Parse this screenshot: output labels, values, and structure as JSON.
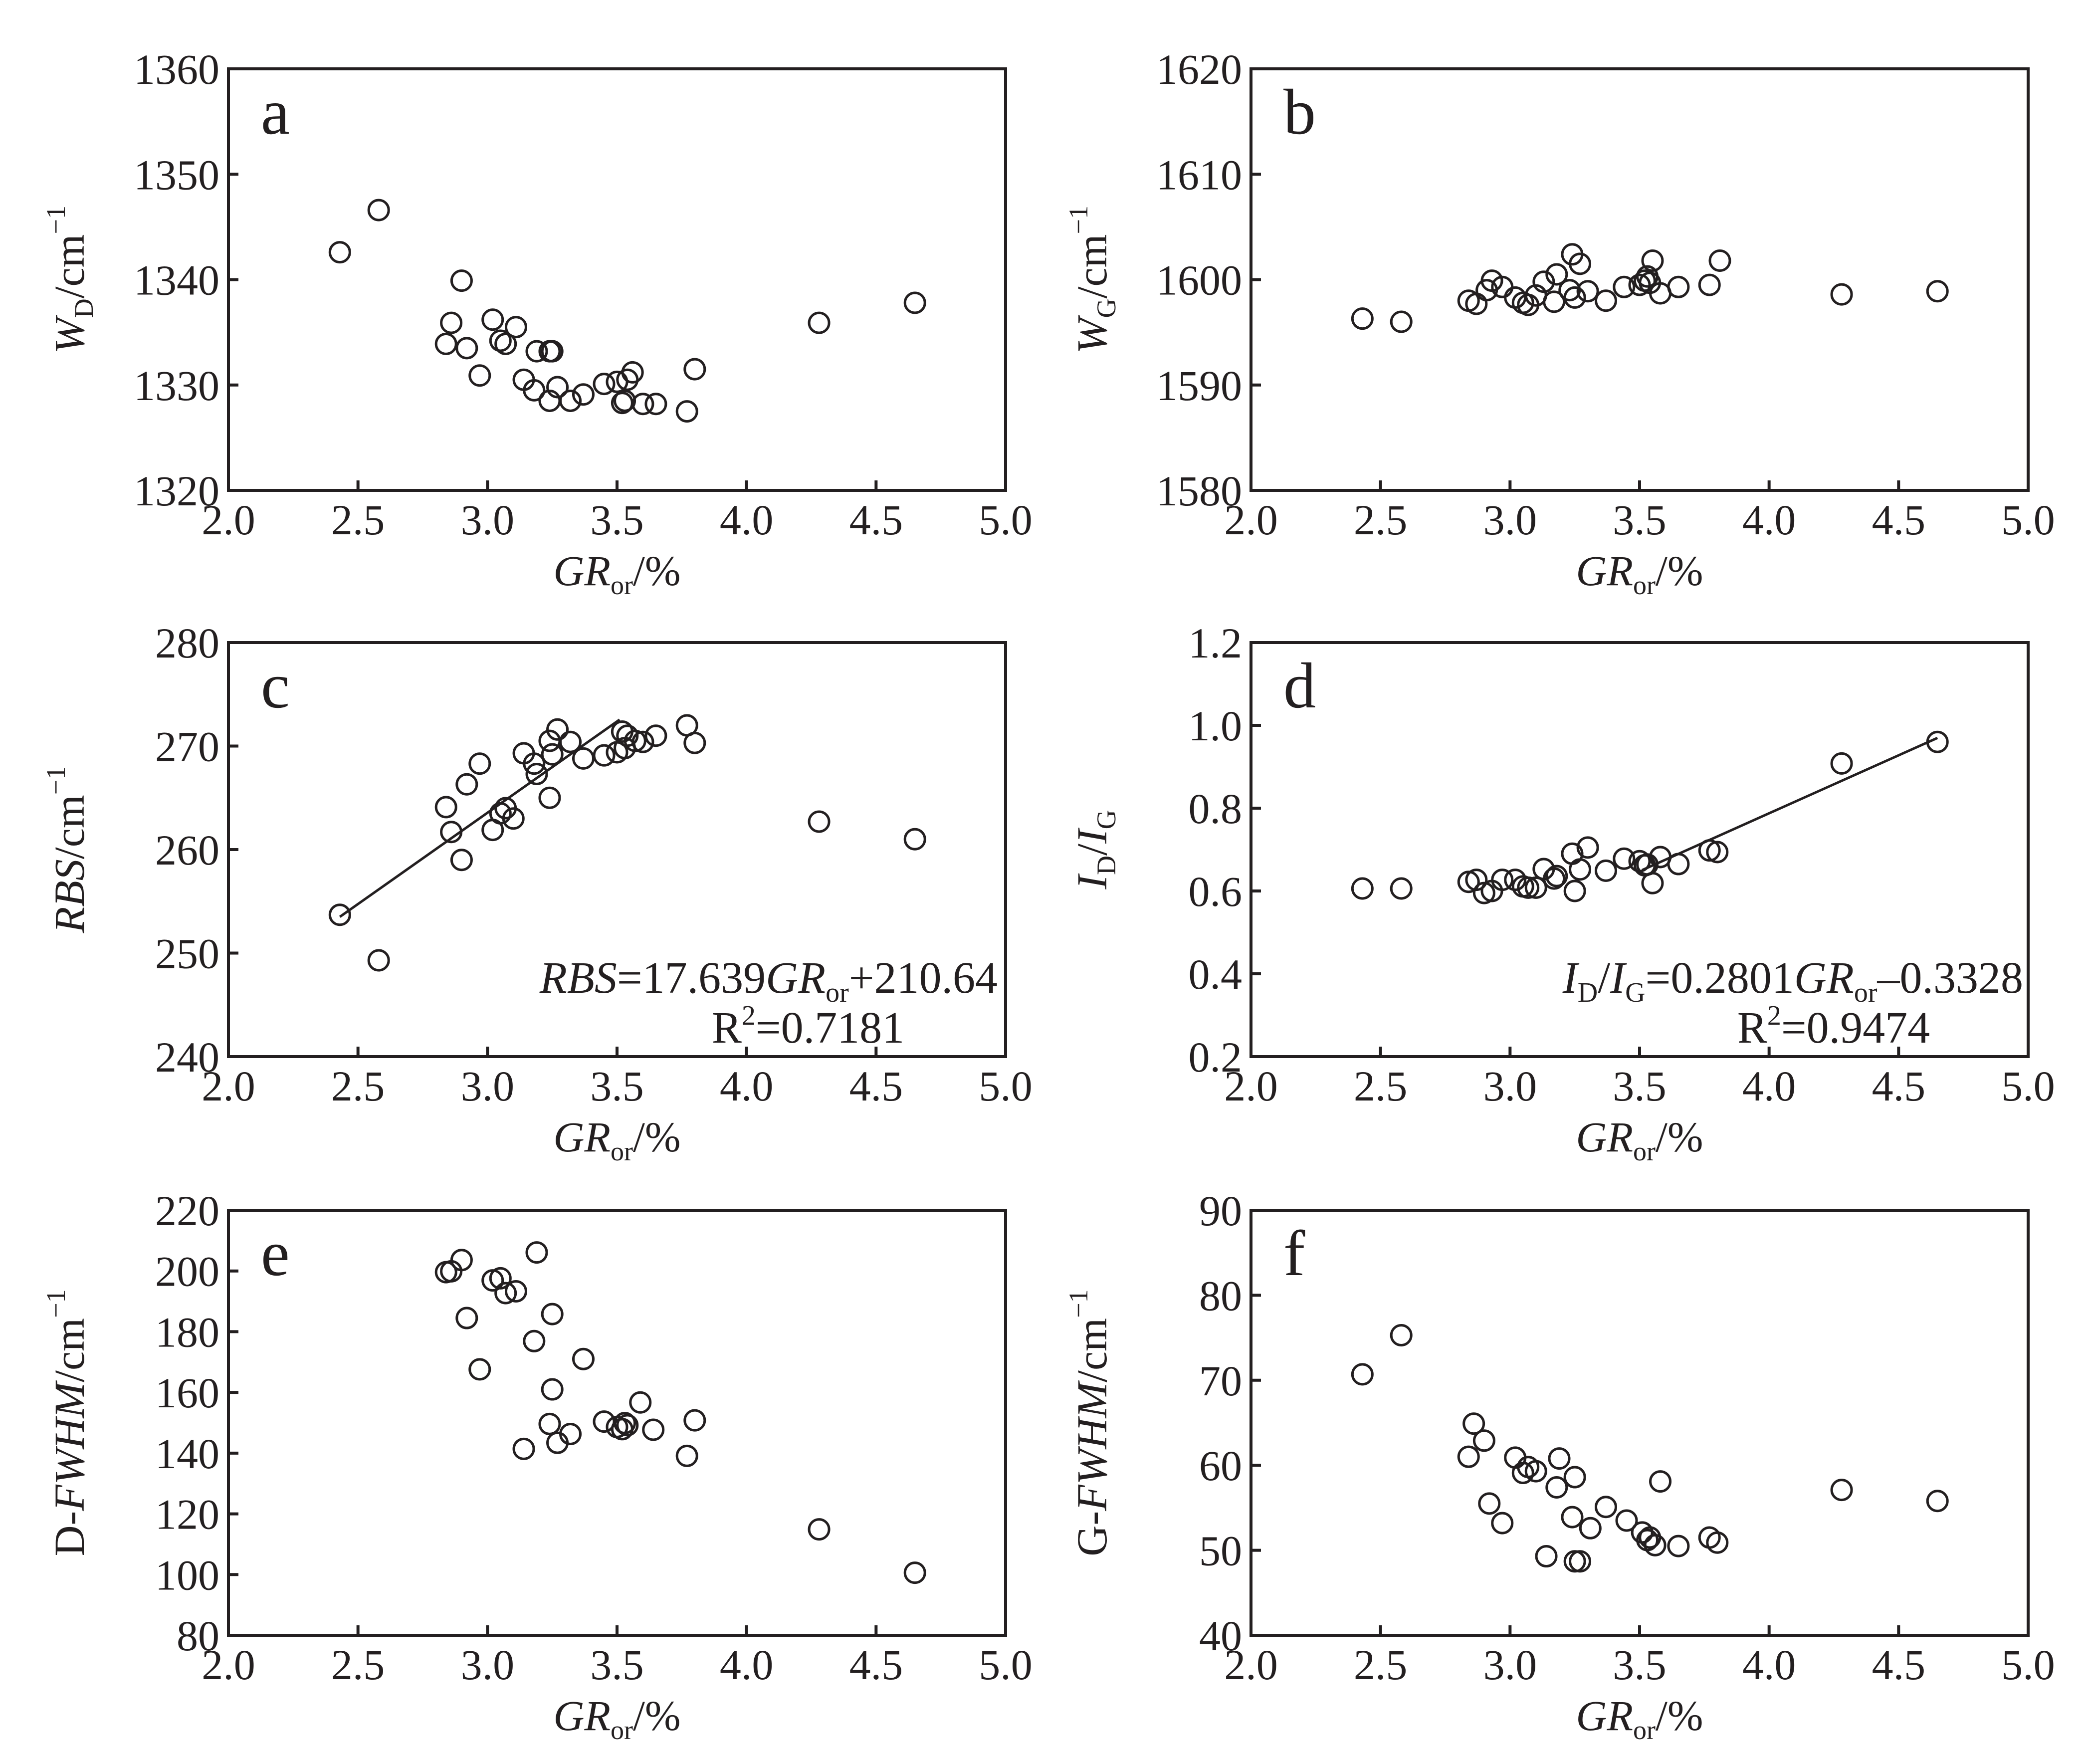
{
  "colors": {
    "ink": "#231f20",
    "background": "#ffffff"
  },
  "chart_data": [
    {
      "id": "a",
      "type": "scatter",
      "label": "a",
      "xlabel": {
        "base": "GR",
        "sub": "or",
        "suffix": "/%"
      },
      "ylabel": {
        "base": "W",
        "sub": "D",
        "suffix": "/cm",
        "sup": "−1"
      },
      "xlim": [
        2.0,
        5.0
      ],
      "ylim": [
        1320,
        1360
      ],
      "xticks": [
        "2.0",
        "2.5",
        "3.0",
        "3.5",
        "4.0",
        "4.5",
        "5.0"
      ],
      "yticks": [
        "1320",
        "1330",
        "1340",
        "1350",
        "1360"
      ],
      "points": [
        [
          2.43,
          1342.6
        ],
        [
          2.58,
          1346.6
        ],
        [
          2.84,
          1333.9
        ],
        [
          2.86,
          1335.9
        ],
        [
          2.9,
          1339.9
        ],
        [
          2.92,
          1333.5
        ],
        [
          2.97,
          1330.9
        ],
        [
          3.02,
          1336.2
        ],
        [
          3.05,
          1334.2
        ],
        [
          3.07,
          1333.9
        ],
        [
          3.11,
          1335.5
        ],
        [
          3.14,
          1330.5
        ],
        [
          3.18,
          1329.5
        ],
        [
          3.19,
          1333.2
        ],
        [
          3.24,
          1328.5
        ],
        [
          3.24,
          1333.2
        ],
        [
          3.25,
          1333.2
        ],
        [
          3.27,
          1329.8
        ],
        [
          3.32,
          1328.5
        ],
        [
          3.37,
          1329.1
        ],
        [
          3.45,
          1330.1
        ],
        [
          3.5,
          1330.3
        ],
        [
          3.52,
          1328.3
        ],
        [
          3.53,
          1328.5
        ],
        [
          3.54,
          1330.5
        ],
        [
          3.56,
          1331.2
        ],
        [
          3.6,
          1328.2
        ],
        [
          3.65,
          1328.2
        ],
        [
          3.77,
          1327.5
        ],
        [
          3.8,
          1331.5
        ],
        [
          4.28,
          1335.9
        ],
        [
          4.65,
          1337.8
        ]
      ]
    },
    {
      "id": "b",
      "type": "scatter",
      "label": "b",
      "xlabel": {
        "base": "GR",
        "sub": "or",
        "suffix": "/%"
      },
      "ylabel": {
        "base": "W",
        "sub": "G",
        "suffix": "/cm",
        "sup": "−1"
      },
      "xlim": [
        2.0,
        5.0
      ],
      "ylim": [
        1580,
        1620
      ],
      "xticks": [
        "2.0",
        "2.5",
        "3.0",
        "3.5",
        "4.0",
        "4.5",
        "5.0"
      ],
      "yticks": [
        "1580",
        "1590",
        "1600",
        "1610",
        "1620"
      ],
      "points": [
        [
          2.43,
          1596.3
        ],
        [
          2.58,
          1596.0
        ],
        [
          2.84,
          1598.0
        ],
        [
          2.87,
          1597.7
        ],
        [
          2.91,
          1599.0
        ],
        [
          2.93,
          1599.9
        ],
        [
          2.97,
          1599.3
        ],
        [
          3.02,
          1598.3
        ],
        [
          3.05,
          1597.8
        ],
        [
          3.07,
          1597.6
        ],
        [
          3.1,
          1598.5
        ],
        [
          3.13,
          1599.8
        ],
        [
          3.17,
          1597.9
        ],
        [
          3.18,
          1600.5
        ],
        [
          3.23,
          1599.0
        ],
        [
          3.24,
          1602.4
        ],
        [
          3.25,
          1598.3
        ],
        [
          3.27,
          1601.5
        ],
        [
          3.3,
          1598.9
        ],
        [
          3.37,
          1598.0
        ],
        [
          3.44,
          1599.3
        ],
        [
          3.5,
          1599.5
        ],
        [
          3.52,
          1599.9
        ],
        [
          3.53,
          1600.3
        ],
        [
          3.54,
          1599.7
        ],
        [
          3.55,
          1601.8
        ],
        [
          3.58,
          1598.7
        ],
        [
          3.65,
          1599.3
        ],
        [
          3.77,
          1599.5
        ],
        [
          3.81,
          1601.8
        ],
        [
          4.28,
          1598.6
        ],
        [
          4.65,
          1598.9
        ]
      ]
    },
    {
      "id": "c",
      "type": "scatter",
      "label": "c",
      "xlabel": {
        "base": "GR",
        "sub": "or",
        "suffix": "/%"
      },
      "ylabel": {
        "base": "RBS",
        "sub": "",
        "suffix": "/cm",
        "sup": "−1"
      },
      "xlim": [
        2.0,
        5.0
      ],
      "ylim": [
        240,
        280
      ],
      "xticks": [
        "2.0",
        "2.5",
        "3.0",
        "3.5",
        "4.0",
        "4.5",
        "5.0"
      ],
      "yticks": [
        "240",
        "250",
        "260",
        "270",
        "280"
      ],
      "points": [
        [
          2.43,
          253.7
        ],
        [
          2.58,
          249.3
        ],
        [
          2.84,
          264.1
        ],
        [
          2.86,
          261.7
        ],
        [
          2.9,
          259.0
        ],
        [
          2.92,
          266.3
        ],
        [
          2.97,
          268.3
        ],
        [
          3.02,
          261.9
        ],
        [
          3.05,
          263.5
        ],
        [
          3.07,
          264.0
        ],
        [
          3.1,
          263.0
        ],
        [
          3.14,
          269.3
        ],
        [
          3.18,
          268.3
        ],
        [
          3.19,
          267.3
        ],
        [
          3.24,
          270.5
        ],
        [
          3.24,
          265.0
        ],
        [
          3.25,
          269.2
        ],
        [
          3.27,
          271.6
        ],
        [
          3.32,
          270.4
        ],
        [
          3.37,
          268.8
        ],
        [
          3.45,
          269.1
        ],
        [
          3.5,
          269.4
        ],
        [
          3.52,
          271.4
        ],
        [
          3.53,
          269.8
        ],
        [
          3.54,
          271.0
        ],
        [
          3.57,
          270.5
        ],
        [
          3.6,
          270.4
        ],
        [
          3.65,
          271.0
        ],
        [
          3.77,
          272.0
        ],
        [
          3.8,
          270.3
        ],
        [
          4.28,
          262.7
        ],
        [
          4.65,
          261.0
        ]
      ],
      "fit": {
        "slope": 17.639,
        "intercept": 210.64,
        "x_range": [
          2.43,
          3.51
        ]
      },
      "equation": {
        "lhs": "RBS",
        "lhs_sub": "",
        "text": "=17.639",
        "var": "GR",
        "var_sub": "or",
        "rest": "+210.64",
        "r2_prefix": "R",
        "r2_sup": "2",
        "r2_value": "=0.7181"
      }
    },
    {
      "id": "d",
      "type": "scatter",
      "label": "d",
      "xlabel": {
        "base": "GR",
        "sub": "or",
        "suffix": "/%"
      },
      "ylabel": {
        "base": "I",
        "sub": "D",
        "suffix": "/",
        "base2": "I",
        "sub2": "G"
      },
      "xlim": [
        2.0,
        5.0
      ],
      "ylim": [
        0.2,
        1.2
      ],
      "xticks": [
        "2.0",
        "2.5",
        "3.0",
        "3.5",
        "4.0",
        "4.5",
        "5.0"
      ],
      "yticks": [
        "0.2",
        "0.4",
        "0.6",
        "0.8",
        "1.0",
        "1.2"
      ],
      "points": [
        [
          2.43,
          0.606
        ],
        [
          2.58,
          0.606
        ],
        [
          2.84,
          0.622
        ],
        [
          2.87,
          0.627
        ],
        [
          2.9,
          0.595
        ],
        [
          2.93,
          0.6
        ],
        [
          2.97,
          0.627
        ],
        [
          3.02,
          0.627
        ],
        [
          3.05,
          0.611
        ],
        [
          3.07,
          0.608
        ],
        [
          3.1,
          0.608
        ],
        [
          3.13,
          0.653
        ],
        [
          3.17,
          0.63
        ],
        [
          3.18,
          0.636
        ],
        [
          3.24,
          0.69
        ],
        [
          3.25,
          0.6
        ],
        [
          3.27,
          0.652
        ],
        [
          3.3,
          0.705
        ],
        [
          3.37,
          0.649
        ],
        [
          3.44,
          0.678
        ],
        [
          3.5,
          0.672
        ],
        [
          3.52,
          0.662
        ],
        [
          3.53,
          0.664
        ],
        [
          3.55,
          0.619
        ],
        [
          3.58,
          0.682
        ],
        [
          3.65,
          0.665
        ],
        [
          3.77,
          0.698
        ],
        [
          3.8,
          0.694
        ],
        [
          4.28,
          0.908
        ],
        [
          4.65,
          0.96
        ]
      ],
      "fit": {
        "slope": 0.2801,
        "intercept": -0.3328,
        "x_range": [
          3.51,
          4.65
        ]
      },
      "equation": {
        "lhs": "I",
        "lhs_sub": "D",
        "lhs2": "I",
        "lhs2_sub": "G",
        "text": "=0.2801",
        "var": "GR",
        "var_sub": "or",
        "rest": "–0.3328",
        "r2_prefix": "R",
        "r2_sup": "2",
        "r2_value": "=0.9474"
      }
    },
    {
      "id": "e",
      "type": "scatter",
      "label": "e",
      "xlabel": {
        "base": "GR",
        "sub": "or",
        "suffix": "/%"
      },
      "ylabel": {
        "pre": "D-",
        "base": "FWHM",
        "sub": "",
        "suffix": "/cm",
        "sup": "−1"
      },
      "xlim": [
        2.0,
        5.0
      ],
      "ylim": [
        80,
        220
      ],
      "xticks": [
        "2.0",
        "2.5",
        "3.0",
        "3.5",
        "4.0",
        "4.5",
        "5.0"
      ],
      "yticks": [
        "80",
        "100",
        "120",
        "140",
        "160",
        "180",
        "200",
        "220"
      ],
      "points": [
        [
          2.84,
          199.6
        ],
        [
          2.86,
          199.9
        ],
        [
          2.9,
          203.6
        ],
        [
          2.92,
          184.5
        ],
        [
          2.97,
          167.6
        ],
        [
          3.02,
          196.9
        ],
        [
          3.05,
          197.6
        ],
        [
          3.07,
          192.7
        ],
        [
          3.11,
          193.3
        ],
        [
          3.14,
          141.4
        ],
        [
          3.18,
          176.9
        ],
        [
          3.19,
          206.1
        ],
        [
          3.24,
          149.6
        ],
        [
          3.25,
          185.8
        ],
        [
          3.25,
          161.0
        ],
        [
          3.27,
          143.4
        ],
        [
          3.32,
          146.3
        ],
        [
          3.37,
          171.0
        ],
        [
          3.45,
          150.4
        ],
        [
          3.5,
          148.6
        ],
        [
          3.52,
          147.9
        ],
        [
          3.53,
          149.9
        ],
        [
          3.54,
          149.2
        ],
        [
          3.59,
          156.7
        ],
        [
          3.64,
          147.7
        ],
        [
          3.77,
          139.1
        ],
        [
          3.8,
          150.8
        ],
        [
          4.28,
          114.9
        ],
        [
          4.65,
          100.6
        ]
      ]
    },
    {
      "id": "f",
      "type": "scatter",
      "label": "f",
      "xlabel": {
        "base": "GR",
        "sub": "or",
        "suffix": "/%"
      },
      "ylabel": {
        "pre": "G-",
        "base": "FWHM",
        "sub": "",
        "suffix": "/cm",
        "sup": "−1"
      },
      "xlim": [
        2.0,
        5.0
      ],
      "ylim": [
        40,
        90
      ],
      "xticks": [
        "2.0",
        "2.5",
        "3.0",
        "3.5",
        "4.0",
        "4.5",
        "5.0"
      ],
      "yticks": [
        "40",
        "50",
        "60",
        "70",
        "80",
        "90"
      ],
      "points": [
        [
          2.43,
          70.7
        ],
        [
          2.58,
          75.3
        ],
        [
          2.84,
          61.0
        ],
        [
          2.86,
          64.9
        ],
        [
          2.9,
          62.9
        ],
        [
          2.92,
          55.5
        ],
        [
          2.97,
          53.2
        ],
        [
          3.02,
          60.9
        ],
        [
          3.05,
          59.1
        ],
        [
          3.07,
          59.8
        ],
        [
          3.1,
          59.3
        ],
        [
          3.14,
          49.3
        ],
        [
          3.18,
          57.4
        ],
        [
          3.19,
          60.8
        ],
        [
          3.24,
          53.9
        ],
        [
          3.25,
          48.7
        ],
        [
          3.25,
          58.6
        ],
        [
          3.27,
          48.7
        ],
        [
          3.31,
          52.6
        ],
        [
          3.37,
          55.1
        ],
        [
          3.45,
          53.5
        ],
        [
          3.51,
          52.1
        ],
        [
          3.53,
          51.2
        ],
        [
          3.54,
          51.5
        ],
        [
          3.56,
          50.6
        ],
        [
          3.58,
          58.1
        ],
        [
          3.65,
          50.5
        ],
        [
          3.77,
          51.5
        ],
        [
          3.8,
          50.9
        ],
        [
          4.28,
          57.1
        ],
        [
          4.65,
          55.8
        ]
      ]
    }
  ]
}
